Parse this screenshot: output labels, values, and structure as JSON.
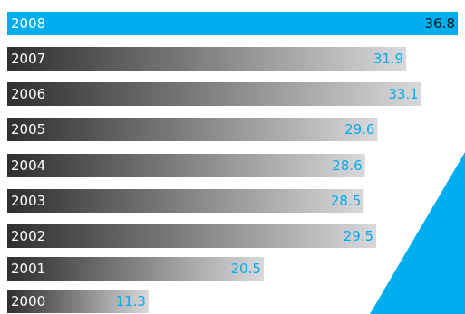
{
  "chart_data": {
    "type": "bar",
    "orientation": "horizontal",
    "categories": [
      "2008",
      "2007",
      "2006",
      "2005",
      "2004",
      "2003",
      "2002",
      "2001",
      "2000"
    ],
    "values": [
      36.8,
      31.9,
      33.1,
      29.6,
      28.6,
      28.5,
      29.5,
      20.5,
      11.3
    ],
    "value_labels": [
      "36.8",
      "31.9",
      "33.1",
      "29.6",
      "28.6",
      "28.5",
      "29.5",
      "20.5",
      "11.3"
    ],
    "highlight_category": "2008",
    "title": "",
    "xlabel": "",
    "ylabel": "",
    "grid": false,
    "legend": "none"
  },
  "colors": {
    "accent": "#00aeef",
    "bar_dark": "#2f2f2f",
    "bar_light": "#d9d9db",
    "label_on_dark": "#ffffff",
    "label_on_accent": "#ffffff",
    "value_on_accent": "#1a1a1a",
    "value_default": "#00aeef"
  }
}
